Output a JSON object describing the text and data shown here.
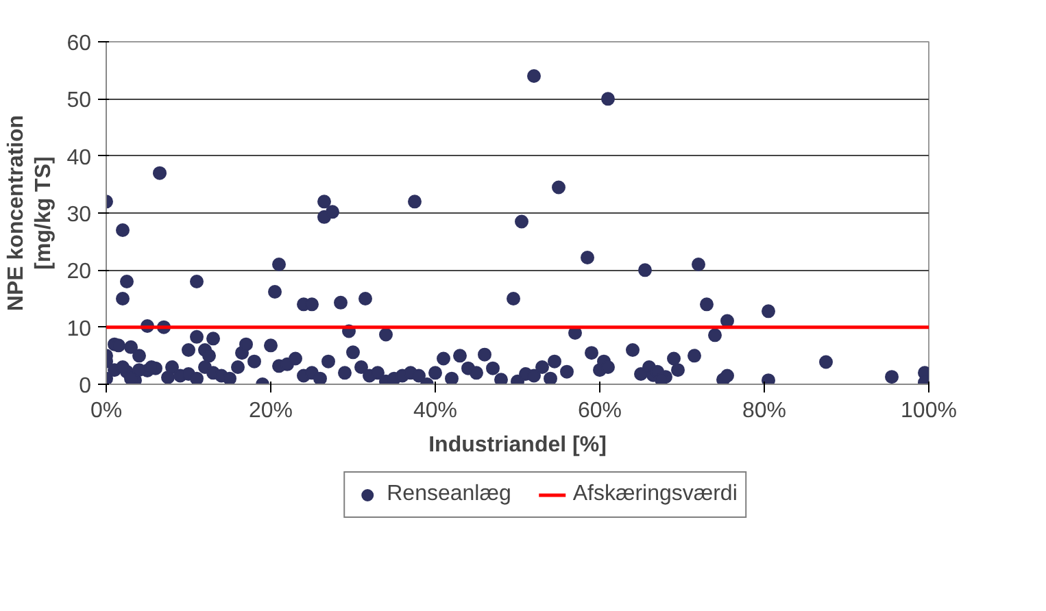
{
  "chart_data": {
    "type": "scatter",
    "xlabel": "Industriandel [%]",
    "ylabel": "NPE koncentration\n[mg/kg TS]",
    "xlim": [
      0,
      100
    ],
    "ylim": [
      0,
      60
    ],
    "xticks": [
      {
        "value": 0,
        "label": "0%"
      },
      {
        "value": 20,
        "label": "20%"
      },
      {
        "value": 40,
        "label": "40%"
      },
      {
        "value": 60,
        "label": "60%"
      },
      {
        "value": 80,
        "label": "80%"
      },
      {
        "value": 100,
        "label": "100%"
      }
    ],
    "yticks": [
      0,
      10,
      20,
      30,
      40,
      50,
      60
    ],
    "grid": "y",
    "legend": "bottom",
    "marker": "circle",
    "series": [
      {
        "name": "Renseanlæg",
        "color": "#2e3160",
        "x": [
          0,
          2,
          2.5,
          2,
          6.5,
          11,
          5,
          7,
          20.5,
          21,
          24,
          25,
          26.5,
          26.5,
          27.5,
          28.5,
          31.5,
          29.5,
          37.5,
          34,
          49.5,
          50.5,
          52,
          55,
          57,
          58.5,
          61,
          65.5,
          72,
          73,
          74,
          75.5,
          80.5,
          1,
          3,
          1.5,
          10,
          11,
          12,
          13,
          12.5,
          8,
          4,
          6,
          5,
          3.5,
          2.5,
          7.5,
          9,
          10,
          11,
          12,
          13,
          14,
          15,
          16,
          16.5,
          17,
          18,
          19,
          0,
          0,
          0,
          1,
          2,
          3,
          4,
          5.5,
          20,
          21,
          22,
          23,
          24,
          25,
          26,
          27,
          29,
          30,
          31,
          32,
          33,
          34,
          35,
          36,
          37,
          38,
          39,
          40,
          41,
          42,
          43,
          44,
          45,
          46,
          47,
          48,
          50,
          51,
          52,
          53,
          54,
          54.5,
          56,
          59,
          60,
          60.5,
          61,
          64,
          65,
          66,
          66.5,
          67,
          68,
          69,
          69.5,
          71.5,
          75,
          75.5,
          87.5,
          95.5,
          99.5,
          99.5,
          80.5,
          67.5
        ],
        "values": [
          32,
          27,
          18,
          15,
          37,
          18,
          10.2,
          10,
          16.2,
          21,
          14,
          14,
          32,
          29.3,
          30.2,
          14.3,
          15,
          9.3,
          32,
          8.7,
          15,
          28.5,
          54,
          34.5,
          9,
          22.2,
          50,
          20,
          21,
          14,
          8.6,
          11.1,
          12.8,
          7,
          6.5,
          6.8,
          6,
          8.3,
          6,
          8,
          5,
          3,
          5,
          2.8,
          2.4,
          0.7,
          2.2,
          1.2,
          1.5,
          1.8,
          1,
          3,
          2,
          1.5,
          1,
          3,
          5.5,
          7,
          4,
          0,
          1,
          4,
          5,
          2.5,
          3,
          1,
          2.5,
          3,
          6.8,
          3.2,
          3.5,
          4.5,
          1.5,
          2,
          1,
          4,
          2,
          5.6,
          3,
          1.5,
          2,
          0.5,
          1,
          1.5,
          2,
          1.5,
          0,
          2,
          4.5,
          1,
          5,
          2.8,
          2,
          5.2,
          2.8,
          0.8,
          0.5,
          1.8,
          1.5,
          3,
          1,
          4,
          2.2,
          5.5,
          2.5,
          4,
          3,
          6,
          1.8,
          3,
          1.6,
          2.2,
          1.3,
          4.5,
          2.5,
          5,
          0.8,
          1.5,
          3.9,
          1.3,
          2,
          0.3,
          0.7,
          0.8
        ]
      }
    ],
    "ref_lines": [
      {
        "axis": "y",
        "value": 10,
        "label": "Afskæringsværdi",
        "color": "#ff0000",
        "line_style": "solid"
      }
    ]
  }
}
